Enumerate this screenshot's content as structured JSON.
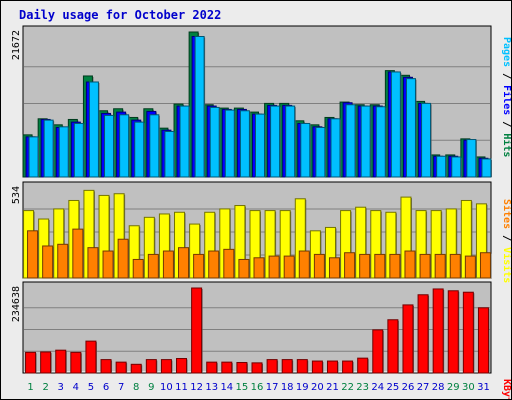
{
  "chart_data": {
    "type": "bar",
    "title": "Daily usage for October 2022",
    "days": [
      "1",
      "2",
      "3",
      "4",
      "5",
      "6",
      "7",
      "8",
      "9",
      "10",
      "11",
      "12",
      "13",
      "14",
      "15",
      "16",
      "17",
      "18",
      "19",
      "20",
      "21",
      "22",
      "23",
      "24",
      "25",
      "26",
      "27",
      "28",
      "29",
      "30",
      "31"
    ],
    "weekend_days": [
      "1",
      "2",
      "8",
      "9",
      "15",
      "16",
      "22",
      "23",
      "29",
      "30"
    ],
    "panels": [
      {
        "id": "top",
        "max_label": "21672",
        "max": 21672,
        "series": [
          {
            "name": "Hits",
            "color": "#008040",
            "values": [
              6300,
              8700,
              7800,
              8600,
              15100,
              9900,
              10200,
              8900,
              10200,
              7300,
              10900,
              21672,
              10800,
              10300,
              10300,
              9700,
              11000,
              11000,
              8400,
              7800,
              8900,
              11200,
              10800,
              10800,
              15900,
              15200,
              11300,
              3300,
              3300,
              5700,
              3000
            ]
          },
          {
            "name": "Files",
            "color": "#0000ff",
            "values": [
              6000,
              8600,
              7400,
              8200,
              14200,
              9500,
              9700,
              8500,
              9800,
              7000,
              10600,
              21000,
              10600,
              10100,
              10100,
              9400,
              10700,
              10700,
              8000,
              7500,
              8700,
              11100,
              10600,
              10600,
              15700,
              14900,
              11000,
              3100,
              3100,
              5500,
              2800
            ]
          },
          {
            "name": "Pages",
            "color": "#00c0ff",
            "values": [
              6000,
              8500,
              7500,
              8000,
              14200,
              9200,
              9300,
              8200,
              9300,
              6800,
              10600,
              21000,
              10400,
              10000,
              9900,
              9400,
              10600,
              10600,
              8000,
              7400,
              8700,
              10800,
              10600,
              10500,
              15700,
              14700,
              11000,
              3100,
              3000,
              5600,
              2700
            ]
          }
        ]
      },
      {
        "id": "mid",
        "max_label": "534",
        "max": 534,
        "series": [
          {
            "name": "Visits",
            "color": "#ffff00",
            "values": [
              400,
              350,
              410,
              460,
              520,
              490,
              500,
              310,
              360,
              380,
              390,
              320,
              390,
              410,
              430,
              400,
              400,
              400,
              470,
              280,
              300,
              400,
              420,
              400,
              390,
              480,
              400,
              400,
              410,
              460,
              440
            ]
          },
          {
            "name": "Sites",
            "color": "#ff8000",
            "values": [
              280,
              190,
              200,
              290,
              180,
              160,
              230,
              110,
              140,
              160,
              180,
              140,
              160,
              170,
              110,
              120,
              130,
              130,
              160,
              140,
              120,
              150,
              140,
              140,
              140,
              160,
              140,
              140,
              140,
              130,
              150
            ]
          }
        ]
      },
      {
        "id": "bottom",
        "max_label": "234638",
        "max": 234638,
        "series": [
          {
            "name": "KBytes",
            "color": "#ff0000",
            "values": [
              57000,
              58000,
              63000,
              57000,
              88000,
              37000,
              30000,
              24000,
              37000,
              37000,
              40000,
              234638,
              30000,
              30000,
              29000,
              28000,
              37000,
              37000,
              37000,
              33000,
              33000,
              33000,
              41000,
              119000,
              147000,
              188000,
              216000,
              232000,
              227000,
              223000,
              180000
            ]
          }
        ]
      }
    ],
    "legend": {
      "top": [
        "Pages",
        "Files",
        "Hits"
      ],
      "mid": [
        "Sites",
        "Visits"
      ],
      "bottom": [
        "KBytes"
      ],
      "separator": " / "
    },
    "colors": {
      "hits": "#008040",
      "files": "#0000ff",
      "pages": "#00c0ff",
      "visits": "#ffff00",
      "sites": "#ff8000",
      "kbytes": "#ff0000",
      "plot_bg": "#c0c0c0",
      "frame_bg": "#ececec",
      "weekend_label": "#008040",
      "weekday_label": "#0000cc"
    }
  }
}
